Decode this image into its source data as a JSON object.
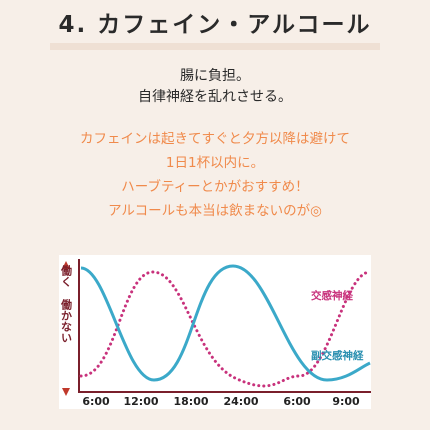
{
  "title": "4. カフェイン・アルコール",
  "intro_lines": [
    "腸に負担。",
    "自律神経を乱れさせる。"
  ],
  "advice_lines": [
    "カフェインは起きてすぐと夕方以降は避けて",
    "1日1杯以内に。",
    "ハーブティーとかがおすすめ！",
    "アルコールも本当は飲まないのが◎"
  ],
  "colors": {
    "accent_text": "#f08a4b",
    "sympathetic": "#c8327c",
    "parasympathetic": "#3ba9c9",
    "axis": "#7a1f2b",
    "title_underline": "#efe0d4"
  },
  "diagram": {
    "y_top_label": "働く",
    "y_bottom_label": "働かない",
    "x_labels": [
      "6:00",
      "12:00",
      "18:00",
      "24:00",
      "6:00",
      "9:00"
    ],
    "series": [
      {
        "name": "交感神経",
        "style": "dotted",
        "peak_label": "12:00–18:00",
        "low_label": "24:00"
      },
      {
        "name": "副交感神経",
        "style": "solid",
        "peak_label": "24:00",
        "low_label": "12:00–18:00"
      }
    ]
  }
}
